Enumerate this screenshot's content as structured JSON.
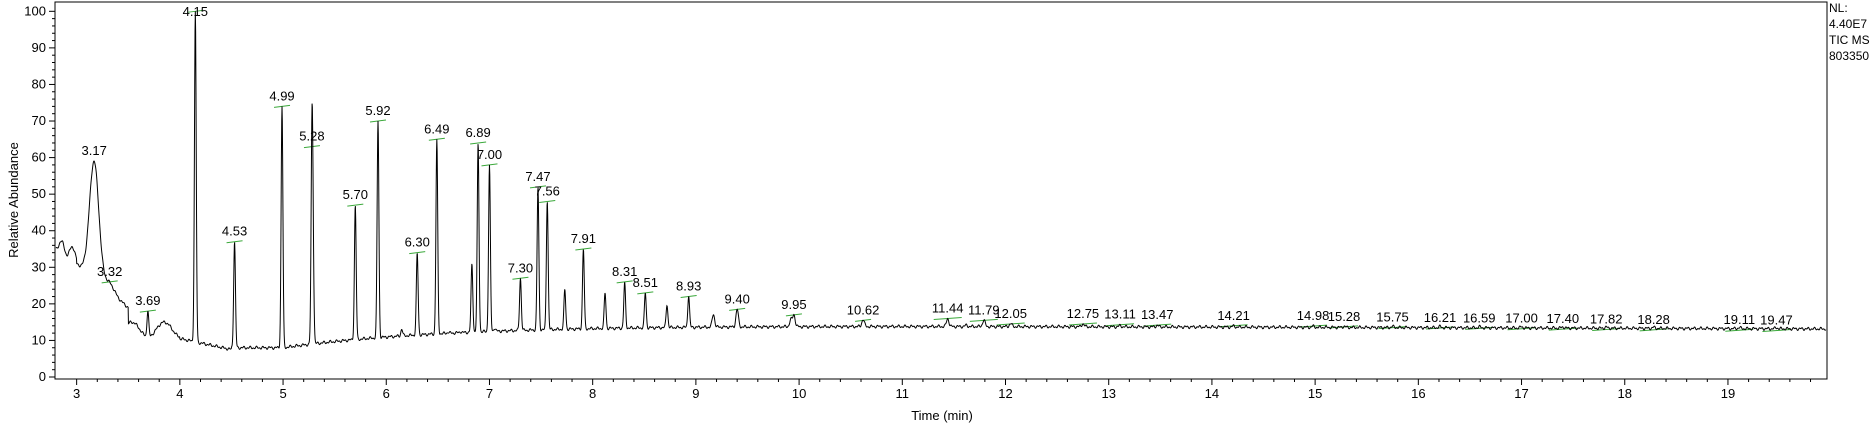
{
  "chart_data": {
    "type": "line",
    "xlabel": "Time (min)",
    "ylabel": "Relative Abundance",
    "xlim": [
      2.8,
      19.95
    ],
    "ylim": [
      0,
      102
    ],
    "x_ticks": [
      3,
      4,
      5,
      6,
      7,
      8,
      9,
      10,
      11,
      12,
      13,
      14,
      15,
      16,
      17,
      18,
      19
    ],
    "y_ticks": [
      0,
      10,
      20,
      30,
      40,
      50,
      60,
      70,
      80,
      90,
      100
    ],
    "info": [
      "NL:",
      "4.40E7",
      "TIC  MS",
      "803350"
    ],
    "peaks": [
      {
        "rt": 3.17,
        "height": 59,
        "label": "3.17"
      },
      {
        "rt": 3.32,
        "height": 26,
        "label": "3.32"
      },
      {
        "rt": 3.69,
        "height": 18,
        "label": "3.69"
      },
      {
        "rt": 4.15,
        "height": 100,
        "label": "4.15"
      },
      {
        "rt": 4.53,
        "height": 37,
        "label": "4.53"
      },
      {
        "rt": 4.99,
        "height": 74,
        "label": "4.99"
      },
      {
        "rt": 5.28,
        "height": 63,
        "label": "5.28"
      },
      {
        "rt": 5.7,
        "height": 47,
        "label": "5.70"
      },
      {
        "rt": 5.92,
        "height": 70,
        "label": "5.92"
      },
      {
        "rt": 6.3,
        "height": 34,
        "label": "6.30"
      },
      {
        "rt": 6.49,
        "height": 65,
        "label": "6.49"
      },
      {
        "rt": 6.89,
        "height": 64,
        "label": "6.89"
      },
      {
        "rt": 7.0,
        "height": 58,
        "label": "7.00"
      },
      {
        "rt": 7.3,
        "height": 27,
        "label": "7.30"
      },
      {
        "rt": 7.47,
        "height": 52,
        "label": "7.47"
      },
      {
        "rt": 7.56,
        "height": 48,
        "label": "7.56"
      },
      {
        "rt": 7.91,
        "height": 35,
        "label": "7.91"
      },
      {
        "rt": 8.31,
        "height": 26,
        "label": "8.31"
      },
      {
        "rt": 8.51,
        "height": 23,
        "label": "8.51"
      },
      {
        "rt": 8.93,
        "height": 22,
        "label": "8.93"
      },
      {
        "rt": 9.4,
        "height": 18.5,
        "label": "9.40"
      },
      {
        "rt": 9.95,
        "height": 17,
        "label": "9.95"
      },
      {
        "rt": 10.62,
        "height": 15.5,
        "label": "10.62"
      },
      {
        "rt": 11.44,
        "height": 16,
        "label": "11.44"
      },
      {
        "rt": 11.79,
        "height": 15.5,
        "label": "11.79"
      },
      {
        "rt": 12.05,
        "height": 14.5,
        "label": "12.05"
      },
      {
        "rt": 12.75,
        "height": 14.5,
        "label": "12.75"
      },
      {
        "rt": 13.11,
        "height": 14.3,
        "label": "13.11"
      },
      {
        "rt": 13.47,
        "height": 14.2,
        "label": "13.47"
      },
      {
        "rt": 14.21,
        "height": 14.0,
        "label": "14.21"
      },
      {
        "rt": 14.98,
        "height": 13.9,
        "label": "14.98"
      },
      {
        "rt": 15.28,
        "height": 13.7,
        "label": "15.28"
      },
      {
        "rt": 15.75,
        "height": 13.5,
        "label": "15.75"
      },
      {
        "rt": 16.21,
        "height": 13.4,
        "label": "16.21"
      },
      {
        "rt": 16.59,
        "height": 13.3,
        "label": "16.59"
      },
      {
        "rt": 17.0,
        "height": 13.2,
        "label": "17.00"
      },
      {
        "rt": 17.4,
        "height": 13.1,
        "label": "17.40"
      },
      {
        "rt": 17.82,
        "height": 13.0,
        "label": "17.82"
      },
      {
        "rt": 18.28,
        "height": 12.9,
        "label": "18.28"
      },
      {
        "rt": 19.11,
        "height": 12.8,
        "label": "19.11"
      },
      {
        "rt": 19.47,
        "height": 12.7,
        "label": "19.47"
      }
    ],
    "unlabeled_peaks": [
      {
        "rt": 5.29,
        "height": 30
      },
      {
        "rt": 6.15,
        "height": 13
      },
      {
        "rt": 6.6,
        "height": 12
      },
      {
        "rt": 6.72,
        "height": 11.5
      },
      {
        "rt": 6.83,
        "height": 31
      },
      {
        "rt": 7.05,
        "height": 13
      },
      {
        "rt": 7.73,
        "height": 24
      },
      {
        "rt": 8.12,
        "height": 23
      },
      {
        "rt": 8.72,
        "height": 19.5
      },
      {
        "rt": 9.17,
        "height": 17
      },
      {
        "rt": 9.92,
        "height": 16
      },
      {
        "rt": 11.62,
        "height": 14.5
      }
    ],
    "colors": {
      "trace": "#000000",
      "baseline_marks": "#3aa83a",
      "frame": "#000000"
    }
  }
}
